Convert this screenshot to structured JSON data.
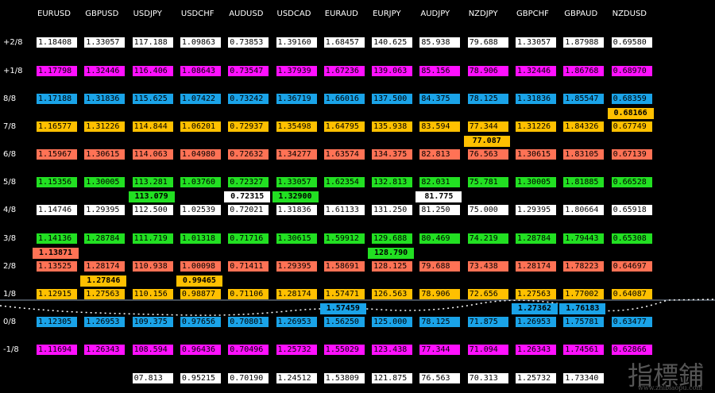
{
  "header": {
    "columns": [
      "EURUSD",
      "GBPUSD",
      "USDJPY",
      "USDCHF",
      "AUDUSD",
      "USDCAD",
      "EURAUD",
      "EURJPY",
      "AUDJPY",
      "NZDJPY",
      "GBPCHF",
      "GBPAUD",
      "NZDUSD"
    ]
  },
  "rows": [
    {
      "label": "+2/8",
      "values": [
        "1.18408",
        "1.33057",
        "117.188",
        "1.09863",
        "0.73853",
        "1.39160",
        "1.68457",
        "140.625",
        "85.938",
        "79.688",
        "1.33057",
        "1.87988",
        "0.69580"
      ]
    },
    {
      "label": "+1/8",
      "values": [
        "1.17798",
        "1.32446",
        "116.406",
        "1.08643",
        "0.73547",
        "1.37939",
        "1.67236",
        "139.063",
        "85.156",
        "78.906",
        "1.32446",
        "1.86768",
        "0.68970"
      ]
    },
    {
      "label": "8/8",
      "values": [
        "1.17188",
        "1.31836",
        "115.625",
        "1.07422",
        "0.73242",
        "1.36719",
        "1.66016",
        "137.500",
        "84.375",
        "78.125",
        "1.31836",
        "1.85547",
        "0.68359"
      ]
    },
    {
      "label": "7/8",
      "values": [
        "1.16577",
        "1.31226",
        "114.844",
        "1.06201",
        "0.72937",
        "1.35498",
        "1.64795",
        "135.938",
        "83.594",
        "77.344",
        "1.31226",
        "1.84326",
        "0.67749"
      ]
    },
    {
      "label": "6/8",
      "values": [
        "1.15967",
        "1.30615",
        "114.063",
        "1.04980",
        "0.72632",
        "1.34277",
        "1.63574",
        "134.375",
        "82.813",
        "76.563",
        "1.30615",
        "1.83105",
        "0.67139"
      ]
    },
    {
      "label": "5/8",
      "values": [
        "1.15356",
        "1.30005",
        "113.281",
        "1.03760",
        "0.72327",
        "1.33057",
        "1.62354",
        "132.813",
        "82.031",
        "75.781",
        "1.30005",
        "1.81885",
        "0.66528"
      ]
    },
    {
      "label": "4/8",
      "values": [
        "1.14746",
        "1.29395",
        "112.500",
        "1.02539",
        "0.72021",
        "1.31836",
        "1.61133",
        "131.250",
        "81.250",
        "75.000",
        "1.29395",
        "1.80664",
        "0.65918"
      ]
    },
    {
      "label": "3/8",
      "values": [
        "1.14136",
        "1.28784",
        "111.719",
        "1.01318",
        "0.71716",
        "1.30615",
        "1.59912",
        "129.688",
        "80.469",
        "74.219",
        "1.28784",
        "1.79443",
        "0.65308"
      ]
    },
    {
      "label": "2/8",
      "values": [
        "1.13525",
        "1.28174",
        "110.938",
        "1.00098",
        "0.71411",
        "1.29395",
        "1.58691",
        "128.125",
        "79.688",
        "73.438",
        "1.28174",
        "1.78223",
        "0.64697"
      ]
    },
    {
      "label": "1/8",
      "values": [
        "1.12915",
        "1.27563",
        "110.156",
        "0.98877",
        "0.71106",
        "1.28174",
        "1.57471",
        "126.563",
        "78.906",
        "72.656",
        "1.27563",
        "1.77002",
        "0.64087"
      ]
    },
    {
      "label": "0/8",
      "values": [
        "1.12305",
        "1.26953",
        "109.375",
        "0.97656",
        "0.70801",
        "1.26953",
        "1.56250",
        "125.000",
        "78.125",
        "71.875",
        "1.26953",
        "1.75781",
        "0.63477"
      ]
    },
    {
      "label": "-1/8",
      "values": [
        "1.11694",
        "1.26343",
        "108.594",
        "0.96436",
        "0.70496",
        "1.25732",
        "1.55029",
        "123.438",
        "77.344",
        "71.094",
        "1.26343",
        "1.74561",
        "0.62866"
      ]
    },
    {
      "values": [
        null,
        null,
        "07.813",
        "0.95215",
        "0.70190",
        "1.24512",
        "1.53809",
        "121.875",
        "76.563",
        "70.313",
        "1.25732",
        "1.73340",
        null
      ]
    }
  ],
  "current_prices": [
    "1.13871",
    "1.27846",
    "113.079",
    "0.99465",
    "0.72315",
    "1.32900",
    "1.57459",
    "128.790",
    "81.775",
    "77.087",
    "1.27362",
    "1.76183",
    "0.68166"
  ],
  "watermark": {
    "title": "指標鋪",
    "url": "www.zhibiaopu.com"
  }
}
